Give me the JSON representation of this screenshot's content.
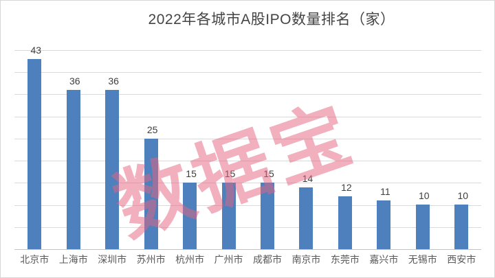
{
  "title": "2022年各城市A股IPO数量排名（家）",
  "watermark": {
    "text": "数据宝"
  },
  "colors": {
    "bar": "#4e80bd",
    "gridline": "#d9d9d9",
    "axis": "#c3c3c3",
    "title": "#444444",
    "data_label": "#3d3d3d",
    "category_label": "#595959",
    "watermark_rgba": "rgba(230,98,125,0.51)",
    "border": "#d6d6d6"
  },
  "chart_data": {
    "type": "bar",
    "title": "2022年各城市A股IPO数量排名（家）",
    "categories": [
      "北京市",
      "上海市",
      "深圳市",
      "苏州市",
      "杭州市",
      "广州市",
      "成都市",
      "南京市",
      "东莞市",
      "嘉兴市",
      "无锡市",
      "西安市"
    ],
    "values": [
      43,
      36,
      36,
      25,
      15,
      15,
      15,
      14,
      12,
      11,
      10,
      10
    ],
    "xlabel": "",
    "ylabel": "",
    "ylim": [
      0,
      45
    ],
    "gridline_interval": 5,
    "grid": true,
    "legend": false,
    "data_labels": true,
    "y_axis_ticks_visible": false,
    "watermark": "数据宝"
  }
}
